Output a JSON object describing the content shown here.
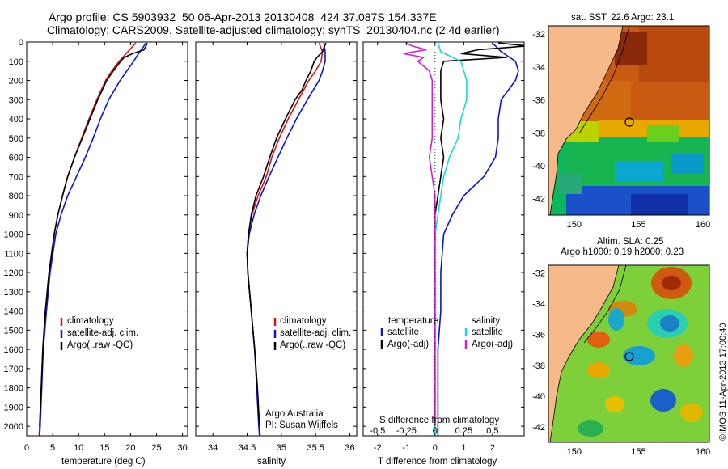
{
  "header": {
    "title_line1": "Argo profile: CS 5903932_50 06-Apr-2013 20130408_424 37.087S 154.337E",
    "title_line2": "Climatology: CARS2009. Satellite-adjusted climatology: synTS_20130404.nc (2.4d earlier)"
  },
  "colors": {
    "climatology": "#e01010",
    "satellite": "#0a14d2",
    "argo": "#000000",
    "sat_salinity": "#18d8d8",
    "argo_salinity_diff": "#d020d0",
    "land": "#f5b98a"
  },
  "chart_data": [
    {
      "type": "line",
      "name": "temperature-panel",
      "xlabel": "temperature (deg C)",
      "ylabel": "",
      "xlim": [
        0,
        31
      ],
      "ylim": [
        0,
        2050
      ],
      "y_inverted": true,
      "xticks": [
        0,
        5,
        10,
        15,
        20,
        25,
        30
      ],
      "yticks": [
        0,
        100,
        200,
        300,
        400,
        500,
        600,
        700,
        800,
        900,
        1000,
        1100,
        1200,
        1300,
        1400,
        1500,
        1600,
        1700,
        1800,
        1900,
        2000
      ],
      "legend": [
        "climatology",
        "satellite-adj. clim.",
        "Argo(..raw -QC)"
      ],
      "legend_position": "lower-right",
      "series": [
        {
          "name": "climatology",
          "depth": [
            5,
            50,
            100,
            150,
            200,
            300,
            400,
            500,
            600,
            700,
            800,
            900,
            1000,
            1200,
            1400,
            1600,
            1800,
            2000,
            2050
          ],
          "values": [
            21.0,
            19.5,
            17.8,
            16.4,
            15.2,
            13.5,
            12.0,
            10.6,
            9.2,
            7.9,
            6.9,
            6.0,
            5.3,
            4.3,
            3.6,
            3.1,
            2.8,
            2.5,
            2.4
          ]
        },
        {
          "name": "satellite-adj. clim.",
          "depth": [
            5,
            50,
            100,
            150,
            200,
            300,
            400,
            500,
            600,
            700,
            800,
            900,
            1000,
            1200,
            1400,
            1600,
            1800,
            2000,
            2050
          ],
          "values": [
            23.0,
            21.8,
            20.6,
            19.3,
            18.0,
            15.8,
            14.2,
            12.8,
            11.3,
            9.6,
            7.9,
            6.6,
            5.6,
            4.5,
            3.8,
            3.2,
            2.9,
            2.6,
            2.5
          ]
        },
        {
          "name": "Argo(..raw -QC)",
          "depth": [
            5,
            20,
            40,
            60,
            80,
            100,
            150,
            200,
            300,
            400,
            500,
            600,
            700,
            800,
            900,
            1000,
            1200,
            1400,
            1600,
            1800,
            2000
          ],
          "values": [
            23.2,
            23.0,
            22.6,
            20.4,
            18.8,
            18.1,
            16.7,
            15.4,
            13.7,
            12.2,
            10.7,
            9.2,
            7.9,
            6.9,
            6.0,
            5.3,
            4.3,
            3.6,
            3.1,
            2.8,
            2.5
          ]
        }
      ]
    },
    {
      "type": "line",
      "name": "salinity-panel",
      "xlabel": "salinity",
      "xlim": [
        33.75,
        36.1
      ],
      "ylim": [
        0,
        2050
      ],
      "y_inverted": true,
      "xticks": [
        34,
        34.5,
        35,
        35.5,
        36
      ],
      "legend": [
        "climatology",
        "satellite-adj. clim.",
        "Argo(..raw -QC)"
      ],
      "legend_position": "lower-right",
      "annotation_line1": "Argo Australia",
      "annotation_line2": "PI: Susan Wijffels",
      "series": [
        {
          "name": "climatology",
          "depth": [
            5,
            50,
            100,
            150,
            200,
            300,
            400,
            500,
            600,
            700,
            800,
            900,
            1000,
            1100,
            1200,
            1400,
            1600,
            1800,
            2000,
            2050
          ],
          "values": [
            35.55,
            35.6,
            35.58,
            35.5,
            35.4,
            35.25,
            35.1,
            34.97,
            34.86,
            34.78,
            34.66,
            34.57,
            34.52,
            34.5,
            34.51,
            34.56,
            34.61,
            34.65,
            34.68,
            34.69
          ]
        },
        {
          "name": "satellite-adj. clim.",
          "depth": [
            5,
            50,
            100,
            150,
            200,
            300,
            400,
            500,
            600,
            700,
            800,
            900,
            1000,
            1100,
            1200,
            1400,
            1600,
            1800,
            2000,
            2050
          ],
          "values": [
            35.62,
            35.64,
            35.64,
            35.6,
            35.55,
            35.38,
            35.22,
            35.08,
            34.95,
            34.82,
            34.7,
            34.6,
            34.53,
            34.5,
            34.51,
            34.56,
            34.61,
            34.64,
            34.67,
            34.68
          ]
        },
        {
          "name": "Argo(..raw -QC)",
          "depth": [
            5,
            30,
            50,
            80,
            100,
            150,
            200,
            250,
            300,
            400,
            500,
            600,
            700,
            800,
            900,
            1000,
            1100,
            1200,
            1400,
            1600,
            1800,
            2000
          ],
          "values": [
            35.65,
            35.62,
            35.6,
            35.52,
            35.48,
            35.43,
            35.36,
            35.3,
            35.2,
            35.06,
            34.93,
            34.83,
            34.74,
            34.63,
            34.56,
            34.52,
            34.5,
            34.51,
            34.56,
            34.61,
            34.65,
            34.68
          ]
        }
      ]
    },
    {
      "type": "line",
      "name": "difference-panel",
      "xlabel": "T difference from climatology",
      "xlabel_top": "S difference from climatology",
      "xlim": [
        -2.5,
        3.1
      ],
      "ylim": [
        0,
        2050
      ],
      "y_inverted": true,
      "xticks": [
        -2,
        -1,
        0,
        1,
        2
      ],
      "xticks_s_labels": [
        "-0.5",
        "-0.25",
        "0",
        "0.25",
        "0.5"
      ],
      "xticks_s_positions": [
        -2,
        -1,
        0,
        1,
        2
      ],
      "legend_temperature_title": "temperature",
      "legend_salinity_title": "salinity",
      "legend_temperature": [
        "satellite",
        "Argo(-adj)"
      ],
      "legend_salinity": [
        "satellite",
        "Argo(-adj)"
      ],
      "series": [
        {
          "name": "T satellite",
          "depth": [
            5,
            50,
            100,
            150,
            200,
            300,
            400,
            500,
            600,
            700,
            800,
            900,
            1000,
            1200,
            1400,
            1600,
            1800,
            2000,
            2050
          ],
          "values": [
            2.0,
            2.3,
            2.8,
            2.9,
            2.8,
            2.3,
            2.2,
            2.2,
            2.1,
            1.7,
            1.0,
            0.6,
            0.3,
            0.2,
            0.2,
            0.1,
            0.1,
            0.1,
            0.1
          ]
        },
        {
          "name": "T Argo(-adj)",
          "depth": [
            5,
            20,
            40,
            60,
            80,
            100,
            150,
            200,
            300,
            400,
            500,
            600,
            700,
            800,
            900,
            1000,
            1200,
            1400,
            1600,
            1800,
            2000
          ],
          "values": [
            2.2,
            3.2,
            1.5,
            0.9,
            2.5,
            0.3,
            0.2,
            0.2,
            0.2,
            0.3,
            0.2,
            0.3,
            0.2,
            0.1,
            0.0,
            0.0,
            0.0,
            0.0,
            0.0,
            0.0,
            0.0
          ]
        },
        {
          "name": "S satellite",
          "depth": [
            5,
            50,
            100,
            150,
            200,
            300,
            400,
            500,
            600,
            700,
            800,
            900,
            1000,
            1200,
            1400,
            1600,
            1800,
            2000,
            2050
          ],
          "values": [
            0.1,
            0.2,
            0.9,
            1.0,
            1.1,
            1.1,
            0.9,
            0.8,
            0.5,
            0.3,
            0.2,
            0.1,
            0.0,
            0.0,
            0.0,
            0.0,
            0.0,
            0.0,
            0.0
          ]
        },
        {
          "name": "S Argo(-adj)",
          "depth": [
            5,
            20,
            40,
            60,
            80,
            100,
            150,
            200,
            300,
            400,
            500,
            600,
            700,
            800,
            900,
            1000,
            1200,
            1400,
            1600,
            1800,
            2000
          ],
          "values": [
            -1.0,
            -0.8,
            -0.3,
            -1.1,
            -0.4,
            -0.6,
            -0.2,
            -0.1,
            -0.1,
            -0.1,
            -0.1,
            -0.2,
            -0.1,
            0.0,
            0.0,
            0.0,
            0.0,
            0.0,
            0.0,
            0.0,
            0.0
          ]
        }
      ]
    },
    {
      "type": "heatmap",
      "name": "sst-map",
      "title": "sat. SST: 22.6 Argo: 23.1",
      "xlim": [
        148,
        160.5
      ],
      "ylim": [
        -43,
        -31.5
      ],
      "xticks": [
        150,
        155,
        160
      ],
      "yticks": [
        -32,
        -34,
        -36,
        -38,
        -40,
        -42
      ],
      "float_position": {
        "lon": 154.337,
        "lat": -37.087
      }
    },
    {
      "type": "heatmap",
      "name": "sla-map",
      "title_line1": "Altim. SLA: 0.25",
      "title_line2": "Argo h1000: 0.19 h2000: 0.23",
      "xlim": [
        148,
        160.5
      ],
      "ylim": [
        -43,
        -31.5
      ],
      "xticks": [
        150,
        155,
        160
      ],
      "yticks": [
        -32,
        -34,
        -36,
        -38,
        -40,
        -42
      ],
      "float_position": {
        "lon": 154.337,
        "lat": -37.087
      }
    }
  ],
  "footer": {
    "vertical_stamp": "©IMOS 11-Apr-2013 17:00:40"
  }
}
